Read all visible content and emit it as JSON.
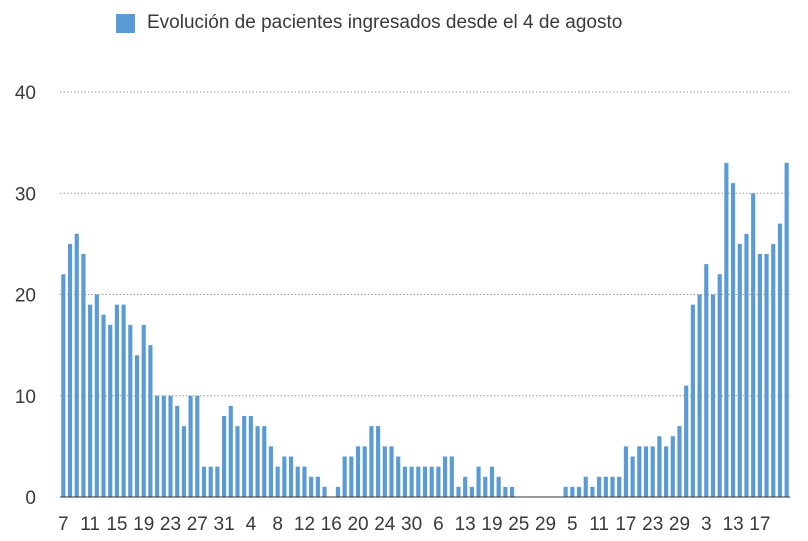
{
  "chart_data": {
    "type": "bar",
    "legend": "Evolución de pacientes ingresados desde el 4 de agosto",
    "color": "#5b9bd5",
    "grid_color": "#9a9a9a",
    "text_color": "#3a3a3a",
    "legend_position": "top",
    "ylim": [
      0,
      40
    ],
    "yticks": [
      0,
      10,
      20,
      30,
      40
    ],
    "grid": true,
    "values": [
      22,
      25,
      26,
      24,
      19,
      20,
      18,
      17,
      19,
      19,
      17,
      14,
      17,
      15,
      10,
      10,
      10,
      9,
      7,
      10,
      10,
      3,
      3,
      3,
      8,
      9,
      7,
      8,
      8,
      7,
      7,
      5,
      3,
      4,
      4,
      3,
      3,
      2,
      2,
      1,
      0,
      1,
      4,
      4,
      5,
      5,
      7,
      7,
      5,
      5,
      4,
      3,
      3,
      3,
      3,
      3,
      3,
      4,
      4,
      1,
      2,
      1,
      3,
      2,
      3,
      2,
      1,
      1,
      0,
      0,
      0,
      0,
      0,
      0,
      0,
      1,
      1,
      1,
      2,
      1,
      2,
      2,
      2,
      2,
      5,
      4,
      5,
      5,
      5,
      6,
      5,
      6,
      7,
      11,
      19,
      20,
      23,
      20,
      22,
      33,
      31,
      25,
      26,
      30,
      24,
      24,
      25,
      27,
      33
    ],
    "xtick_labels": [
      {
        "index": 0,
        "label": "7"
      },
      {
        "index": 4,
        "label": "11"
      },
      {
        "index": 8,
        "label": "15"
      },
      {
        "index": 12,
        "label": "19"
      },
      {
        "index": 16,
        "label": "23"
      },
      {
        "index": 20,
        "label": "27"
      },
      {
        "index": 24,
        "label": "31"
      },
      {
        "index": 28,
        "label": "4"
      },
      {
        "index": 32,
        "label": "8"
      },
      {
        "index": 36,
        "label": "12"
      },
      {
        "index": 40,
        "label": "16"
      },
      {
        "index": 44,
        "label": "20"
      },
      {
        "index": 48,
        "label": "24"
      },
      {
        "index": 52,
        "label": "30"
      },
      {
        "index": 56,
        "label": "6"
      },
      {
        "index": 60,
        "label": "13"
      },
      {
        "index": 64,
        "label": "19"
      },
      {
        "index": 68,
        "label": "25"
      },
      {
        "index": 72,
        "label": "29"
      },
      {
        "index": 76,
        "label": "5"
      },
      {
        "index": 80,
        "label": "11"
      },
      {
        "index": 84,
        "label": "17"
      },
      {
        "index": 88,
        "label": "23"
      },
      {
        "index": 92,
        "label": "29"
      },
      {
        "index": 96,
        "label": "3"
      },
      {
        "index": 100,
        "label": "13"
      },
      {
        "index": 104,
        "label": "17"
      }
    ]
  }
}
